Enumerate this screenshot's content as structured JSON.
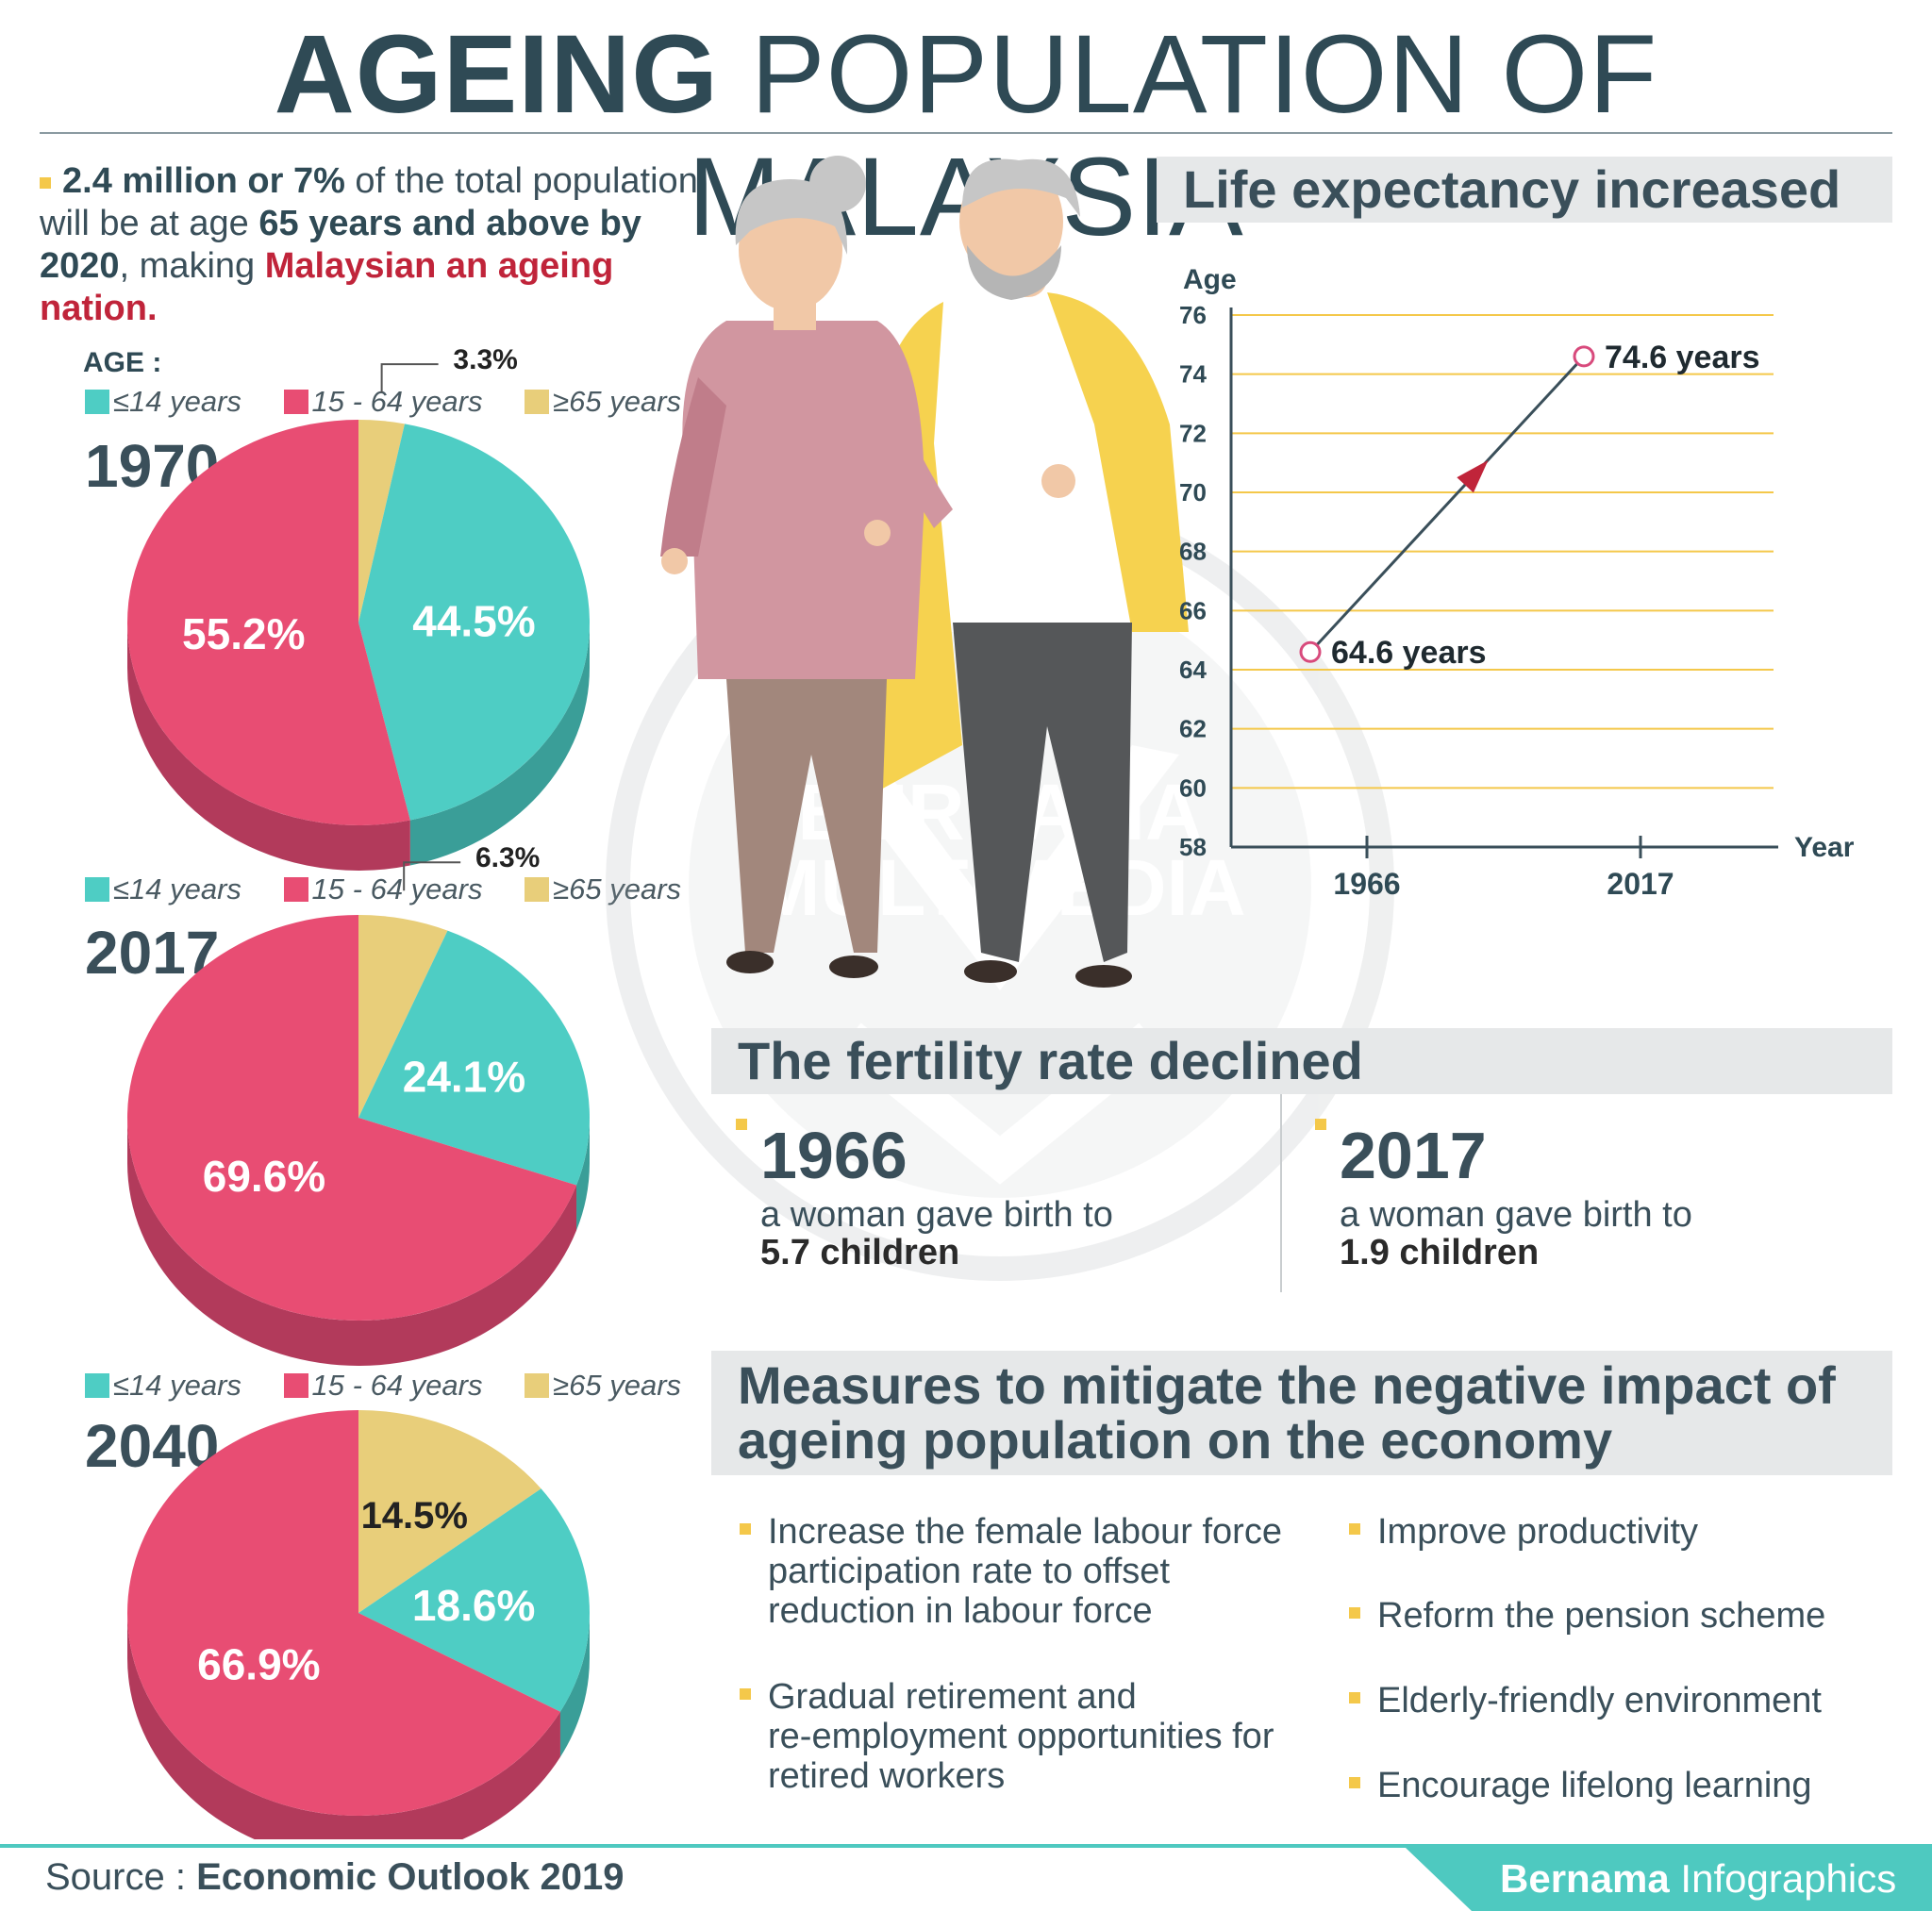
{
  "title": {
    "bold": "AGEING",
    "rest": "POPULATION OF MALAYSIA"
  },
  "intro": {
    "b1": "2.4 million or 7%",
    "t1": " of the total population will be at age ",
    "b2": "65 years and above by 2020",
    "t2": ", making ",
    "b3": "Malaysian an ageing nation."
  },
  "age_heading": "AGE :",
  "legend": [
    "≤14 years",
    "15 - 64 years",
    "≥65 years"
  ],
  "colors": {
    "young": "#4ecdc4",
    "young_side": "#3a9e98",
    "working": "#e84d73",
    "working_side": "#b23a5b",
    "old": "#e8ce7a",
    "old_side": "#b8a05a",
    "accent": "#f4c84a",
    "red": "#c0243a",
    "brand": "#4ec9c0"
  },
  "illustration": {
    "watermark_line1": "BERNAMA",
    "watermark_line2": "MULTIMEDIA"
  },
  "chart_data": [
    {
      "type": "pie",
      "title": "1970",
      "categories": [
        "≤14 years",
        "15 - 64 years",
        "≥65 years"
      ],
      "values": [
        44.5,
        55.2,
        3.3
      ],
      "labels": [
        "44.5%",
        "55.2%",
        "3.3%"
      ]
    },
    {
      "type": "pie",
      "title": "2017",
      "categories": [
        "≤14 years",
        "15 - 64 years",
        "≥65 years"
      ],
      "values": [
        24.1,
        69.6,
        6.3
      ],
      "labels": [
        "24.1%",
        "69.6%",
        "6.3%"
      ]
    },
    {
      "type": "pie",
      "title": "2040",
      "categories": [
        "≤14 years",
        "15 - 64 years",
        "≥65 years"
      ],
      "values": [
        18.6,
        66.9,
        14.5
      ],
      "labels": [
        "18.6%",
        "66.9%",
        "14.5%"
      ]
    },
    {
      "type": "line",
      "title": "Life expectancy increased",
      "xlabel": "Year",
      "ylabel": "Age",
      "x": [
        "1966",
        "2017"
      ],
      "y": [
        64.6,
        74.6
      ],
      "point_labels": [
        "64.6 years",
        "74.6 years"
      ],
      "ylim": [
        58,
        76
      ],
      "yticks": [
        "58",
        "60",
        "62",
        "64",
        "66",
        "68",
        "70",
        "72",
        "74",
        "76"
      ],
      "grid": true
    }
  ],
  "fertility": {
    "title": "The fertility rate declined",
    "items": [
      {
        "year": "1966",
        "text": "a woman gave birth to",
        "value": "5.7 children"
      },
      {
        "year": "2017",
        "text": "a woman gave birth to",
        "value": "1.9 children"
      }
    ]
  },
  "measures": {
    "title_line1": "Measures to mitigate the negative impact of",
    "title_line2": "ageing population on the economy",
    "left": [
      [
        "Increase the female labour force",
        "participation rate to offset",
        "reduction in labour force"
      ],
      [
        "Gradual retirement and",
        "re-employment opportunities for",
        "retired workers"
      ]
    ],
    "right": [
      "Improve productivity",
      "Reform the pension scheme",
      "Elderly-friendly environment",
      "Encourage lifelong learning"
    ]
  },
  "footer": {
    "source_label": "Source : ",
    "source_value": "Economic Outlook 2019",
    "brand_bold": "Bernama",
    "brand_rest": " Infographics"
  }
}
